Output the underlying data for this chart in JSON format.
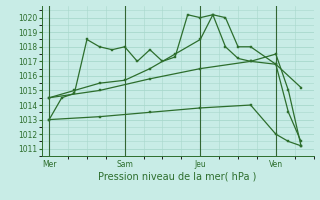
{
  "bg_color": "#c8ece6",
  "grid_color": "#a8d8cc",
  "line_color": "#2d6e2d",
  "xlabel": "Pression niveau de la mer( hPa )",
  "ylim": [
    1010.5,
    1020.8
  ],
  "yticks": [
    1011,
    1012,
    1013,
    1014,
    1015,
    1016,
    1017,
    1018,
    1019,
    1020
  ],
  "xtick_labels": [
    "Mer",
    "Sam",
    "Jeu",
    "Ven"
  ],
  "xtick_positions": [
    0,
    3,
    6,
    9
  ],
  "vline_positions": [
    0,
    3,
    6,
    9
  ],
  "series": [
    {
      "x": [
        0,
        0.5,
        1.0,
        1.5,
        2.0,
        2.5,
        3.0,
        3.5,
        4.0,
        4.5,
        5.0,
        5.5,
        6.0,
        6.5,
        7.0,
        7.5,
        8.0,
        9.0,
        9.5,
        10.0
      ],
      "y": [
        1013,
        1014.5,
        1014.8,
        1018.5,
        1018,
        1017.8,
        1018,
        1017,
        1017.8,
        1017,
        1017.3,
        1020.2,
        1020.0,
        1020.2,
        1018,
        1017.2,
        1017.0,
        1017.5,
        1015,
        1011.2
      ]
    },
    {
      "x": [
        0,
        1,
        2,
        3,
        4,
        5,
        6,
        6.5,
        7,
        7.5,
        8,
        9,
        9.5,
        10
      ],
      "y": [
        1014.5,
        1015,
        1015.5,
        1015.7,
        1016.5,
        1017.5,
        1018.5,
        1020.2,
        1020.0,
        1018,
        1018,
        1016.8,
        1013.5,
        1011.5
      ]
    },
    {
      "x": [
        0,
        2,
        4,
        6,
        8,
        9,
        10
      ],
      "y": [
        1014.5,
        1015.0,
        1015.8,
        1016.5,
        1017.0,
        1016.8,
        1015.2
      ]
    },
    {
      "x": [
        0,
        2,
        4,
        6,
        8,
        9,
        9.5,
        10
      ],
      "y": [
        1013.0,
        1013.2,
        1013.5,
        1013.8,
        1014.0,
        1012.0,
        1011.5,
        1011.2
      ]
    }
  ]
}
